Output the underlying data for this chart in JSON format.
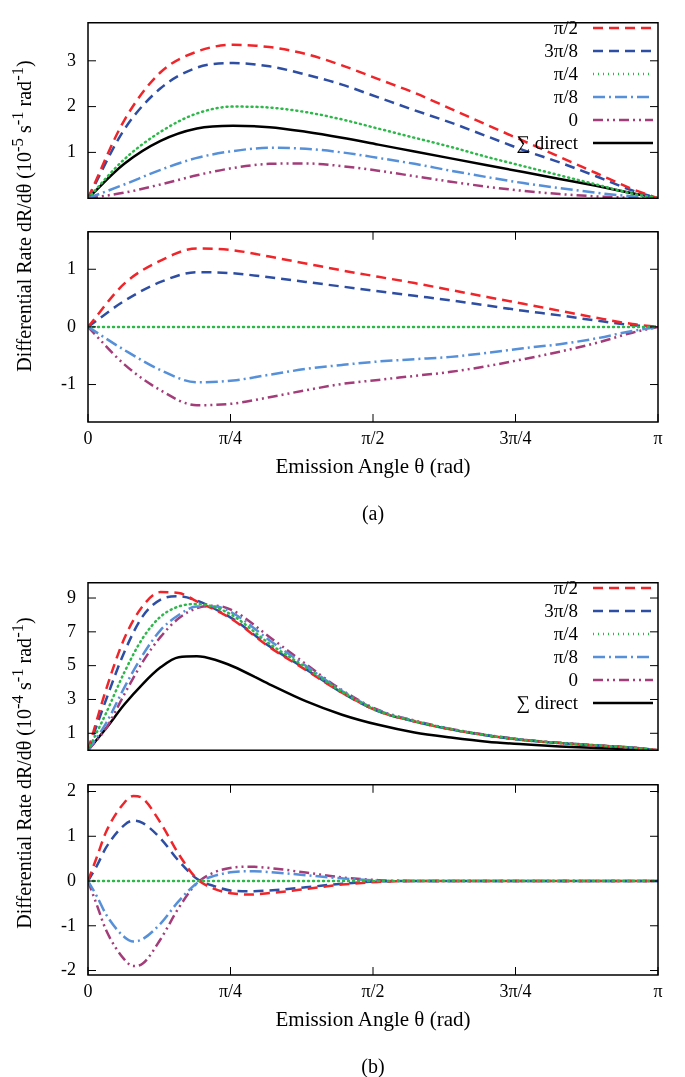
{
  "chart_data": [
    {
      "type": "line",
      "ylabel": "Differential Rate dR/dθ (10$^{-5}$ s$^{-1}$ rad$^{-1}$)",
      "x": [
        0,
        0.2,
        0.4,
        0.6,
        0.8,
        1.0,
        1.2,
        1.4,
        1.6,
        1.8,
        2.0,
        2.2,
        2.4,
        2.6,
        2.8,
        3.0,
        3.1416
      ],
      "xlim": [
        0,
        3.1416
      ],
      "xticks": [
        {
          "value": 0.7854,
          "label": null
        },
        {
          "value": 1.5708,
          "label": null
        },
        {
          "value": 2.3562,
          "label": null
        }
      ],
      "ylim": [
        0,
        3.83
      ],
      "yticks": [
        1,
        2,
        3
      ],
      "tick_labels": "y",
      "grid": false,
      "legend": "top right",
      "series": [
        {
          "name": "π/2",
          "color": "#f0252a",
          "line_style": "dashed",
          "values": [
            0,
            1.7,
            2.75,
            3.2,
            3.35,
            3.3,
            3.15,
            2.9,
            2.6,
            2.3,
            1.95,
            1.6,
            1.25,
            0.9,
            0.55,
            0.2,
            0
          ]
        },
        {
          "name": "3π/8",
          "color": "#2e4ea3",
          "line_style": "dashed",
          "values": [
            0,
            1.5,
            2.4,
            2.85,
            2.95,
            2.88,
            2.7,
            2.48,
            2.2,
            1.92,
            1.65,
            1.35,
            1.05,
            0.78,
            0.48,
            0.17,
            0
          ]
        },
        {
          "name": "π/4",
          "color": "#2db84a",
          "line_style": "dotted",
          "values": [
            0,
            0.85,
            1.45,
            1.85,
            2.0,
            1.98,
            1.88,
            1.72,
            1.52,
            1.32,
            1.12,
            0.9,
            0.7,
            0.5,
            0.3,
            0.1,
            0
          ]
        },
        {
          "name": "π/8",
          "color": "#5590d8",
          "line_style": "dashdot",
          "values": [
            0,
            0.3,
            0.62,
            0.88,
            1.03,
            1.1,
            1.08,
            1.0,
            0.88,
            0.75,
            0.6,
            0.46,
            0.33,
            0.22,
            0.12,
            0.04,
            0
          ]
        },
        {
          "name": "0",
          "color": "#a33d7a",
          "line_style": "dashdotdot",
          "values": [
            0,
            0.12,
            0.3,
            0.5,
            0.66,
            0.75,
            0.76,
            0.7,
            0.6,
            0.48,
            0.36,
            0.25,
            0.16,
            0.09,
            0.04,
            0.01,
            0
          ]
        },
        {
          "name": "∑ direct",
          "color": "#000000",
          "line_style": "solid",
          "values": [
            0,
            0.75,
            1.25,
            1.52,
            1.58,
            1.55,
            1.45,
            1.32,
            1.17,
            1.02,
            0.87,
            0.72,
            0.57,
            0.42,
            0.27,
            0.11,
            0
          ]
        }
      ]
    },
    {
      "type": "line",
      "xlabel": "Emission Angle θ (rad)",
      "annotations": [
        "(a)"
      ],
      "x": [
        0,
        0.2,
        0.4,
        0.6,
        0.8,
        1.0,
        1.2,
        1.4,
        1.6,
        1.8,
        2.0,
        2.2,
        2.4,
        2.6,
        2.8,
        3.0,
        3.1416
      ],
      "xlim": [
        0,
        3.1416
      ],
      "xticks": [
        0,
        {
          "value": 0.7854,
          "label": "π/4"
        },
        {
          "value": 1.5708,
          "label": "π/2"
        },
        {
          "value": 2.3562,
          "label": "3π/4"
        },
        {
          "value": 3.1416,
          "label": "π"
        }
      ],
      "ylim": [
        -1.65,
        1.65
      ],
      "yticks": [
        -1,
        0,
        1
      ],
      "grid": false,
      "series": [
        {
          "color": "#f0252a",
          "line_style": "dashed",
          "values": [
            0,
            0.75,
            1.15,
            1.36,
            1.33,
            1.22,
            1.1,
            0.98,
            0.87,
            0.76,
            0.64,
            0.52,
            0.4,
            0.28,
            0.16,
            0.05,
            0
          ]
        },
        {
          "color": "#2e4ea3",
          "line_style": "dashed",
          "values": [
            0,
            0.45,
            0.78,
            0.95,
            0.93,
            0.86,
            0.78,
            0.7,
            0.62,
            0.54,
            0.46,
            0.37,
            0.28,
            0.2,
            0.11,
            0.03,
            0
          ]
        },
        {
          "color": "#2db84a",
          "line_style": "dotted",
          "values": [
            0,
            0,
            0,
            0,
            0,
            0,
            0,
            0,
            0,
            0,
            0,
            0,
            0,
            0,
            0,
            0,
            0
          ]
        },
        {
          "color": "#5590d8",
          "line_style": "dashdot",
          "values": [
            0,
            -0.4,
            -0.75,
            -0.96,
            -0.93,
            -0.83,
            -0.73,
            -0.66,
            -0.6,
            -0.56,
            -0.52,
            -0.45,
            -0.37,
            -0.3,
            -0.2,
            -0.07,
            0
          ]
        },
        {
          "color": "#a33d7a",
          "line_style": "dashdotdot",
          "values": [
            0,
            -0.65,
            -1.1,
            -1.36,
            -1.33,
            -1.22,
            -1.1,
            -0.99,
            -0.92,
            -0.85,
            -0.78,
            -0.68,
            -0.56,
            -0.43,
            -0.28,
            -0.1,
            0
          ]
        }
      ]
    },
    {
      "type": "line",
      "ylabel": "Differential Rate dR/dθ (10$^{-4}$ s$^{-1}$ rad$^{-1}$)",
      "x": [
        0,
        0.1,
        0.2,
        0.3,
        0.4,
        0.5,
        0.6,
        0.7,
        0.8,
        1.0,
        1.2,
        1.4,
        1.6,
        1.8,
        2.0,
        2.2,
        2.4,
        2.6,
        2.8,
        3.0,
        3.1416
      ],
      "xlim": [
        0,
        3.1416
      ],
      "xticks": [
        {
          "value": 0.7854,
          "label": null
        },
        {
          "value": 1.5708,
          "label": null
        },
        {
          "value": 2.3562,
          "label": null
        }
      ],
      "ylim": [
        0,
        9.9
      ],
      "yticks": [
        1,
        3,
        5,
        7,
        9
      ],
      "tick_labels": "y",
      "grid": false,
      "legend": "top right",
      "series": [
        {
          "name": "π/2",
          "color": "#f0252a",
          "line_style": "dashed",
          "values": [
            0,
            3.6,
            6.6,
            8.5,
            9.35,
            9.3,
            8.8,
            8.3,
            7.7,
            6.1,
            4.75,
            3.4,
            2.3,
            1.7,
            1.23,
            0.87,
            0.6,
            0.42,
            0.28,
            0.15,
            0
          ]
        },
        {
          "name": "3π/8",
          "color": "#2e4ea3",
          "line_style": "dashed",
          "values": [
            0,
            3.0,
            5.8,
            7.9,
            8.9,
            9.1,
            8.85,
            8.35,
            7.75,
            6.15,
            4.8,
            3.4,
            2.3,
            1.7,
            1.23,
            0.87,
            0.6,
            0.42,
            0.28,
            0.15,
            0
          ]
        },
        {
          "name": "π/4",
          "color": "#2db84a",
          "line_style": "dotted",
          "values": [
            0,
            2.2,
            4.6,
            6.6,
            7.9,
            8.5,
            8.65,
            8.45,
            7.95,
            6.3,
            4.9,
            3.45,
            2.32,
            1.72,
            1.24,
            0.88,
            0.61,
            0.43,
            0.29,
            0.15,
            0
          ]
        },
        {
          "name": "π/8",
          "color": "#5590d8",
          "line_style": "dashdot",
          "values": [
            0,
            1.6,
            3.7,
            5.6,
            7.1,
            8.0,
            8.5,
            8.5,
            8.1,
            6.5,
            5.0,
            3.5,
            2.35,
            1.73,
            1.25,
            0.89,
            0.62,
            0.43,
            0.29,
            0.15,
            0
          ]
        },
        {
          "name": "0",
          "color": "#a33d7a",
          "line_style": "dashdotdot",
          "values": [
            0,
            1.3,
            3.3,
            5.2,
            6.7,
            7.8,
            8.4,
            8.55,
            8.25,
            6.7,
            5.1,
            3.55,
            2.38,
            1.75,
            1.26,
            0.9,
            0.62,
            0.44,
            0.29,
            0.15,
            0
          ]
        },
        {
          "name": "∑ direct",
          "color": "#000000",
          "line_style": "solid",
          "values": [
            0,
            1.3,
            2.7,
            3.9,
            4.9,
            5.5,
            5.55,
            5.35,
            4.95,
            3.9,
            2.9,
            2.1,
            1.5,
            1.05,
            0.75,
            0.5,
            0.35,
            0.22,
            0.13,
            0.05,
            0
          ]
        }
      ]
    },
    {
      "type": "line",
      "xlabel": "Emission Angle θ (rad)",
      "annotations": [
        "(b)"
      ],
      "x": [
        0,
        0.05,
        0.1,
        0.2,
        0.25,
        0.3,
        0.4,
        0.5,
        0.6,
        0.7,
        0.8,
        0.9,
        1.0,
        1.2,
        1.4,
        1.6,
        1.8,
        2.2,
        2.6,
        3.0,
        3.1416
      ],
      "xlim": [
        0,
        3.1416
      ],
      "xticks": [
        0,
        {
          "value": 0.7854,
          "label": "π/4"
        },
        {
          "value": 1.5708,
          "label": "π/2"
        },
        {
          "value": 2.3562,
          "label": "3π/4"
        },
        {
          "value": 3.1416,
          "label": "π"
        }
      ],
      "ylim": [
        -2.1,
        2.15
      ],
      "yticks": [
        -2,
        -1,
        0,
        1,
        2
      ],
      "grid": false,
      "series": [
        {
          "color": "#f0252a",
          "line_style": "dashed",
          "values": [
            0,
            0.55,
            1.1,
            1.75,
            1.9,
            1.85,
            1.3,
            0.6,
            0.05,
            -0.18,
            -0.28,
            -0.3,
            -0.27,
            -0.18,
            -0.08,
            -0.02,
            0,
            0,
            0,
            0,
            0
          ]
        },
        {
          "color": "#2e4ea3",
          "line_style": "dashed",
          "values": [
            0,
            0.35,
            0.75,
            1.25,
            1.35,
            1.3,
            0.95,
            0.45,
            0.05,
            -0.12,
            -0.22,
            -0.23,
            -0.21,
            -0.14,
            -0.06,
            -0.01,
            0,
            0,
            0,
            0,
            0
          ]
        },
        {
          "color": "#2db84a",
          "line_style": "dotted",
          "values": [
            0,
            0,
            0,
            0,
            0,
            0,
            0,
            0,
            0,
            0,
            0,
            0,
            0,
            0,
            0,
            0,
            0,
            0,
            0,
            0,
            0
          ]
        },
        {
          "color": "#5590d8",
          "line_style": "dashdot",
          "values": [
            0,
            -0.35,
            -0.75,
            -1.25,
            -1.35,
            -1.3,
            -0.95,
            -0.45,
            -0.05,
            0.12,
            0.2,
            0.22,
            0.2,
            0.13,
            0.06,
            0.01,
            0,
            0,
            0,
            0,
            0
          ]
        },
        {
          "color": "#a33d7a",
          "line_style": "dashdotdot",
          "values": [
            0,
            -0.55,
            -1.1,
            -1.75,
            -1.9,
            -1.85,
            -1.3,
            -0.6,
            -0.05,
            0.2,
            0.3,
            0.32,
            0.29,
            0.19,
            0.08,
            0.02,
            0,
            0,
            0,
            0,
            0
          ]
        }
      ]
    }
  ]
}
